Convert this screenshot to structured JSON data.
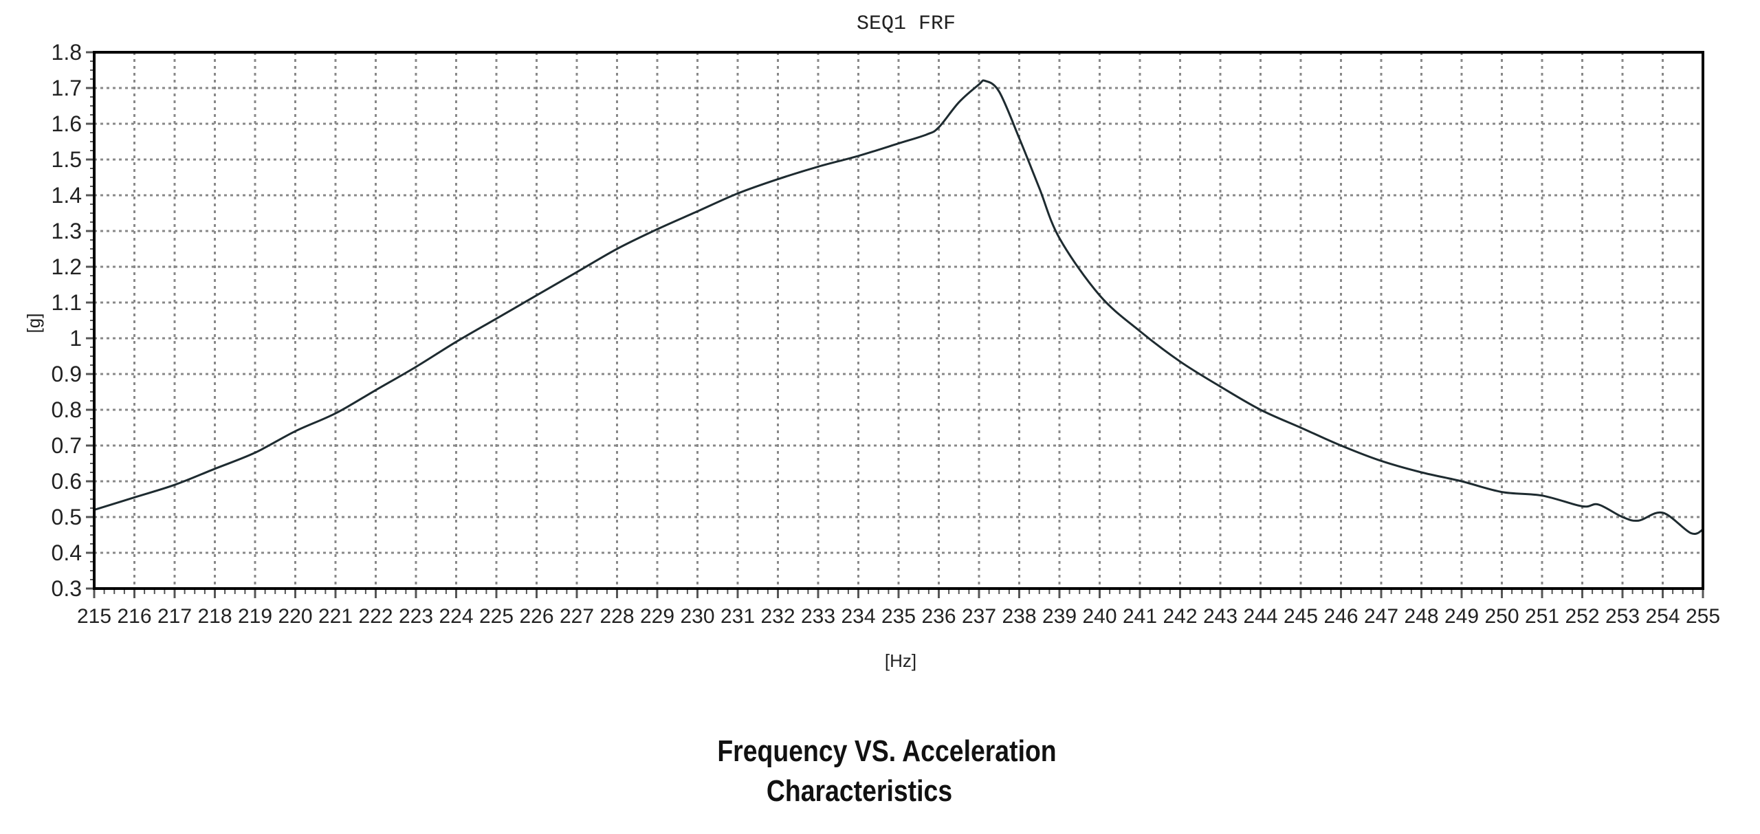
{
  "chart_data": {
    "type": "line",
    "title": "SEQ1 FRF",
    "xlabel": "[Hz]",
    "ylabel": "[g]",
    "xlim": [
      215,
      255
    ],
    "ylim": [
      0.3,
      1.8
    ],
    "x_ticks": [
      215,
      216,
      217,
      218,
      219,
      220,
      221,
      222,
      223,
      224,
      225,
      226,
      227,
      228,
      229,
      230,
      231,
      232,
      233,
      234,
      235,
      236,
      237,
      238,
      239,
      240,
      241,
      242,
      243,
      244,
      245,
      246,
      247,
      248,
      249,
      250,
      251,
      252,
      253,
      254,
      255
    ],
    "y_ticks": [
      "0.3",
      "0.4",
      "0.5",
      "0.6",
      "0.7",
      "0.8",
      "0.9",
      "1",
      "1.1",
      "1.2",
      "1.3",
      "1.4",
      "1.5",
      "1.6",
      "1.7",
      "1.8"
    ],
    "grid": true,
    "line_color": "#1e2b30",
    "series": [
      {
        "x": [
          215,
          216,
          217,
          218,
          219,
          220,
          221,
          222,
          223,
          224,
          225,
          226,
          227,
          228,
          229,
          230,
          231,
          232,
          233,
          234,
          235,
          235.7,
          236,
          236.5,
          237,
          237.15,
          237.5,
          238,
          238.5,
          239,
          240,
          241,
          242,
          243,
          244,
          245,
          246,
          247,
          248,
          249,
          250,
          251,
          252,
          252.4,
          253,
          253.4,
          254,
          254.7,
          255
        ],
        "y": [
          0.52,
          0.555,
          0.59,
          0.635,
          0.68,
          0.74,
          0.79,
          0.855,
          0.92,
          0.99,
          1.055,
          1.12,
          1.185,
          1.25,
          1.305,
          1.355,
          1.405,
          1.445,
          1.48,
          1.51,
          1.545,
          1.57,
          1.59,
          1.66,
          1.71,
          1.72,
          1.69,
          1.56,
          1.42,
          1.28,
          1.12,
          1.02,
          0.935,
          0.865,
          0.8,
          0.75,
          0.7,
          0.657,
          0.625,
          0.6,
          0.57,
          0.56,
          0.53,
          0.535,
          0.5,
          0.49,
          0.512,
          0.455,
          0.465
        ]
      }
    ]
  },
  "caption": {
    "line1": "Frequency  VS.  Acceleration",
    "line2": "Characteristics"
  }
}
